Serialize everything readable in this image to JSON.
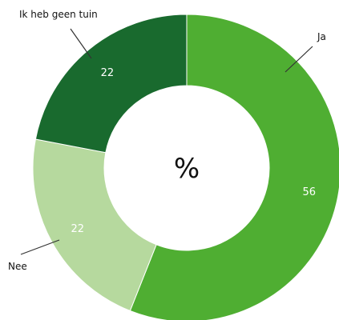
{
  "chart_data": {
    "type": "pie",
    "center_label": "%",
    "slices": [
      {
        "name": "Ja",
        "value": 56,
        "color": "#4fae32"
      },
      {
        "name": "Nee",
        "value": 22,
        "color": "#b6d99e"
      },
      {
        "name": "Ik heb geen tuin",
        "value": 22,
        "color": "#196a2e"
      }
    ]
  }
}
